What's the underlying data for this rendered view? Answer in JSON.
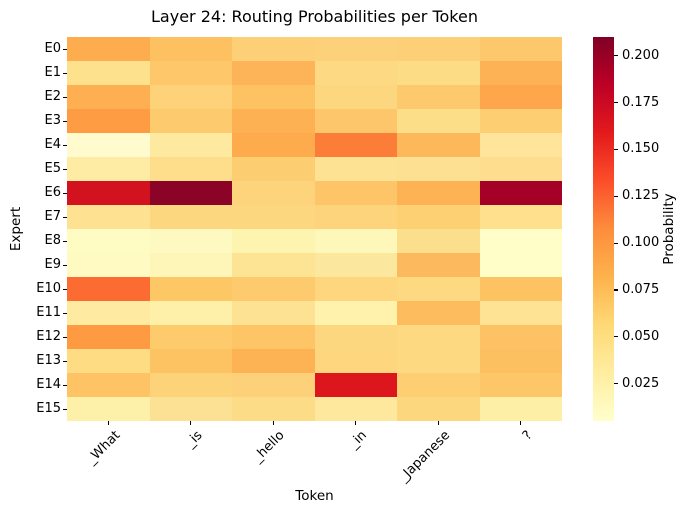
{
  "chart_data": {
    "type": "heatmap",
    "title": "Layer 24: Routing Probabilities per Token",
    "xlabel": "Token",
    "ylabel": "Expert",
    "x_ticklabels": [
      "_What",
      "_is",
      "_hello",
      "_in",
      "_Japanese",
      "?"
    ],
    "y_ticklabels": [
      "E0",
      "E1",
      "E2",
      "E3",
      "E4",
      "E5",
      "E6",
      "E7",
      "E8",
      "E9",
      "E10",
      "E11",
      "E12",
      "E13",
      "E14",
      "E15"
    ],
    "colormap": "YlOrRd",
    "vmin": 0.005,
    "vmax": 0.21,
    "grid": false,
    "values": [
      [
        0.088,
        0.072,
        0.06,
        0.059,
        0.06,
        0.066
      ],
      [
        0.044,
        0.066,
        0.081,
        0.052,
        0.05,
        0.082
      ],
      [
        0.086,
        0.058,
        0.07,
        0.054,
        0.064,
        0.091
      ],
      [
        0.098,
        0.063,
        0.084,
        0.067,
        0.049,
        0.061
      ],
      [
        0.01,
        0.035,
        0.088,
        0.115,
        0.078,
        0.038
      ],
      [
        0.031,
        0.047,
        0.061,
        0.042,
        0.043,
        0.046
      ],
      [
        0.168,
        0.209,
        0.057,
        0.068,
        0.082,
        0.195
      ],
      [
        0.043,
        0.054,
        0.054,
        0.056,
        0.06,
        0.045
      ],
      [
        0.015,
        0.016,
        0.023,
        0.019,
        0.046,
        0.01
      ],
      [
        0.016,
        0.02,
        0.042,
        0.037,
        0.077,
        0.008
      ],
      [
        0.122,
        0.067,
        0.064,
        0.055,
        0.053,
        0.07
      ],
      [
        0.032,
        0.028,
        0.042,
        0.025,
        0.075,
        0.041
      ],
      [
        0.099,
        0.063,
        0.068,
        0.054,
        0.052,
        0.07
      ],
      [
        0.05,
        0.07,
        0.083,
        0.055,
        0.052,
        0.072
      ],
      [
        0.07,
        0.057,
        0.057,
        0.16,
        0.062,
        0.067
      ],
      [
        0.027,
        0.045,
        0.049,
        0.036,
        0.054,
        0.028
      ]
    ],
    "cell_colors": [
      [
        "#fdac4e",
        "#fdc161",
        "#fdd078",
        "#fdd07a",
        "#fdd078",
        "#fdc76b"
      ],
      [
        "#fde18d",
        "#fdc76a",
        "#fdb458",
        "#fdd983",
        "#fddc86",
        "#fdb256"
      ],
      [
        "#fdaf51",
        "#fdd279",
        "#fdc262",
        "#fdd77f",
        "#fdc96d",
        "#fda64b"
      ],
      [
        "#fd9c43",
        "#fdcb6e",
        "#fdb152",
        "#fdc66a",
        "#fdde88",
        "#fdce72"
      ],
      [
        "#fffbce",
        "#fee9a0",
        "#fdab4d",
        "#fb7d37",
        "#fdb85c",
        "#fee59b"
      ],
      [
        "#feeca4",
        "#fede8a",
        "#fdcd72",
        "#fee294",
        "#fee092",
        "#fede8e"
      ],
      [
        "#d2121f",
        "#8b0326",
        "#fdd47b",
        "#fdc468",
        "#fdb254",
        "#a50026"
      ],
      [
        "#fee292",
        "#fdd77f",
        "#fdd77f",
        "#fdd47c",
        "#fdd073",
        "#fee08d"
      ],
      [
        "#fefbc3",
        "#fef9c0",
        "#fdf4b0",
        "#fef7ba",
        "#fcdf8c",
        "#fffdc8"
      ],
      [
        "#fefac1",
        "#fdf6b8",
        "#fce494",
        "#fce79e",
        "#fcb95d",
        "#fffec9"
      ],
      [
        "#fc6c32",
        "#fdc766",
        "#fdca6d",
        "#fdd67e",
        "#fdd981",
        "#fdc363"
      ],
      [
        "#feeba1",
        "#feefa9",
        "#fee293",
        "#fef2ad",
        "#fdbd5e",
        "#fee395"
      ],
      [
        "#fd9a42",
        "#fdca6c",
        "#fdc565",
        "#fdd77f",
        "#fdd981",
        "#fdc263"
      ],
      [
        "#fddc84",
        "#fdc363",
        "#fdb254",
        "#fdd67e",
        "#fdda82",
        "#fdc060"
      ],
      [
        "#fdc364",
        "#fdd37a",
        "#fdd17a",
        "#dd151c",
        "#fdce72",
        "#fdc668"
      ],
      [
        "#fdf0a8",
        "#fce093",
        "#fcdc86",
        "#fde89d",
        "#fcd77e",
        "#fdf0a6"
      ]
    ],
    "colorbar": {
      "label": "Probability",
      "position": "right",
      "ticks": [
        0.2,
        0.175,
        0.15,
        0.125,
        0.1,
        0.075,
        0.05,
        0.025
      ],
      "tick_labels": [
        "0.200",
        "0.175",
        "0.150",
        "0.125",
        "0.100",
        "0.075",
        "0.050",
        "0.025"
      ],
      "gradient_stops": [
        "#ffffcc",
        "#ffeda0",
        "#fed976",
        "#feb24c",
        "#fd8d3c",
        "#fc4e2a",
        "#e31a1c",
        "#bd0026",
        "#800026"
      ]
    }
  }
}
